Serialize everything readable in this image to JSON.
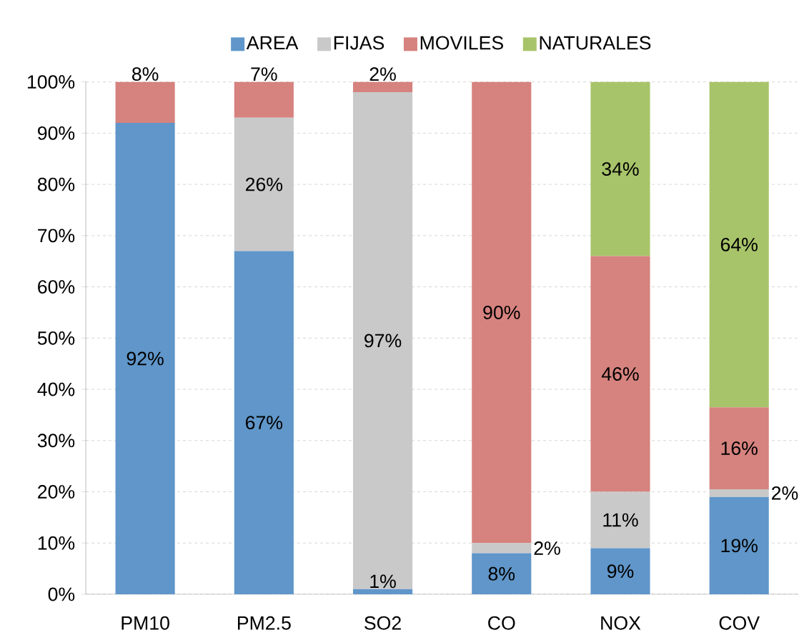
{
  "chart_data": {
    "type": "bar",
    "stacked": true,
    "categories": [
      "PM10",
      "PM2.5",
      "SO2",
      "CO",
      "NOX",
      "COV"
    ],
    "ylim": [
      0,
      100
    ],
    "yticks": [
      {
        "value": 0,
        "label": "0%"
      },
      {
        "value": 10,
        "label": "10%"
      },
      {
        "value": 20,
        "label": "20%"
      },
      {
        "value": 30,
        "label": "30%"
      },
      {
        "value": 40,
        "label": "40%"
      },
      {
        "value": 50,
        "label": "50%"
      },
      {
        "value": 60,
        "label": "60%"
      },
      {
        "value": 70,
        "label": "70%"
      },
      {
        "value": 80,
        "label": "80%"
      },
      {
        "value": 90,
        "label": "90%"
      },
      {
        "value": 100,
        "label": "100%"
      }
    ],
    "grid": "y",
    "legend": "top",
    "series": [
      {
        "name": "AREA",
        "color": "#6096c9",
        "values": [
          92,
          67,
          1,
          8,
          9,
          19
        ],
        "value_labels": [
          "92%",
          "67%",
          "1%",
          "8%",
          "9%",
          "19%"
        ]
      },
      {
        "name": "FIJAS",
        "color": "#c9c9c9",
        "values": [
          null,
          26,
          97,
          2,
          11,
          1.5
        ],
        "value_labels": [
          null,
          "26%",
          "97%",
          "2%",
          "11%",
          "2%"
        ]
      },
      {
        "name": "MOVILES",
        "color": "#d6827e",
        "values": [
          8,
          7,
          2,
          90,
          46,
          16
        ],
        "value_labels": [
          "8%",
          "7%",
          "2%",
          "90%",
          "46%",
          "16%"
        ]
      },
      {
        "name": "NATURALES",
        "color": "#a8c46a",
        "values": [
          null,
          null,
          null,
          null,
          34,
          63.5
        ],
        "value_labels": [
          null,
          null,
          null,
          null,
          "34%",
          "64%"
        ]
      }
    ]
  }
}
